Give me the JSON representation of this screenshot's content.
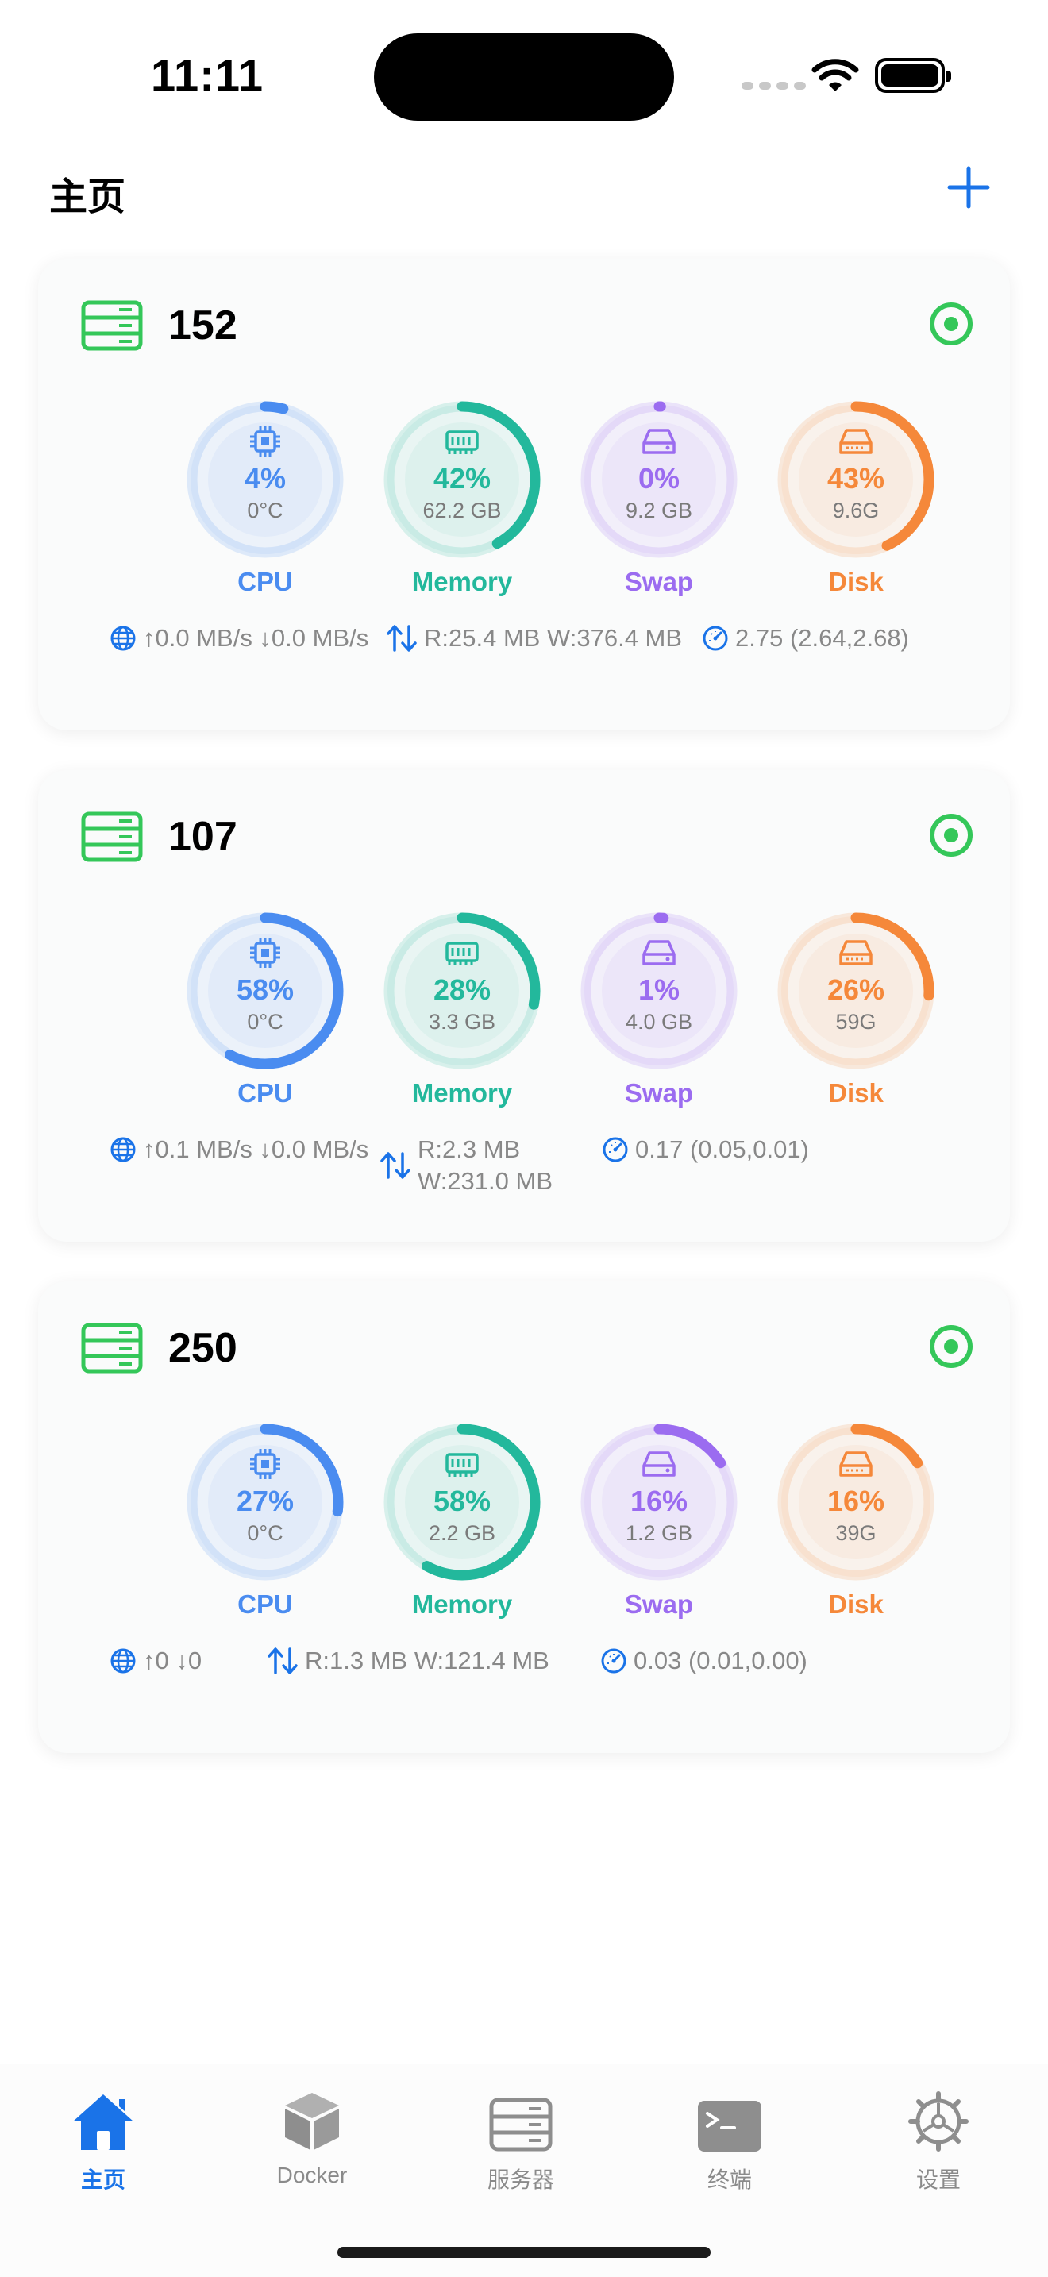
{
  "status_bar": {
    "time": "11:11"
  },
  "header": {
    "title": "主页"
  },
  "colors": {
    "cpu": "#4a8cf0",
    "memory": "#23b89c",
    "swap": "#9b6cf0",
    "disk": "#f5883a",
    "online": "#34c759",
    "accent": "#1a73e8"
  },
  "servers": [
    {
      "name": "152",
      "cpu": {
        "label": "CPU",
        "percent": "4%",
        "sub": "0°C",
        "value": 0.04
      },
      "memory": {
        "label": "Memory",
        "percent": "42%",
        "sub": "62.2 GB",
        "value": 0.42
      },
      "swap": {
        "label": "Swap",
        "percent": "0%",
        "sub": "9.2 GB",
        "value": 0.0
      },
      "disk": {
        "label": "Disk",
        "percent": "43%",
        "sub": "9.6G",
        "value": 0.43
      },
      "network": "↑0.0 MB/s ↓0.0 MB/s",
      "io": "R:25.4 MB W:376.4 MB",
      "load": "2.75 (2.64,2.68)"
    },
    {
      "name": "107",
      "cpu": {
        "label": "CPU",
        "percent": "58%",
        "sub": "0°C",
        "value": 0.58
      },
      "memory": {
        "label": "Memory",
        "percent": "28%",
        "sub": "3.3 GB",
        "value": 0.28
      },
      "swap": {
        "label": "Swap",
        "percent": "1%",
        "sub": "4.0 GB",
        "value": 0.01
      },
      "disk": {
        "label": "Disk",
        "percent": "26%",
        "sub": "59G",
        "value": 0.26
      },
      "network": "↑0.1 MB/s ↓0.0 MB/s",
      "io": "R:2.3 MB W:231.0 MB",
      "load": "0.17 (0.05,0.01)"
    },
    {
      "name": "250",
      "cpu": {
        "label": "CPU",
        "percent": "27%",
        "sub": "0°C",
        "value": 0.27
      },
      "memory": {
        "label": "Memory",
        "percent": "58%",
        "sub": "2.2 GB",
        "value": 0.58
      },
      "swap": {
        "label": "Swap",
        "percent": "16%",
        "sub": "1.2 GB",
        "value": 0.16
      },
      "disk": {
        "label": "Disk",
        "percent": "16%",
        "sub": "39G",
        "value": 0.16
      },
      "network": "↑0 ↓0",
      "io": "R:1.3 MB W:121.4 MB",
      "load": "0.03 (0.01,0.00)"
    }
  ],
  "tabs": [
    {
      "label": "主页",
      "icon": "house-icon",
      "active": true
    },
    {
      "label": "Docker",
      "icon": "box-icon",
      "active": false
    },
    {
      "label": "服务器",
      "icon": "server-icon",
      "active": false
    },
    {
      "label": "终端",
      "icon": "terminal-icon",
      "active": false
    },
    {
      "label": "设置",
      "icon": "gear-icon",
      "active": false
    }
  ]
}
